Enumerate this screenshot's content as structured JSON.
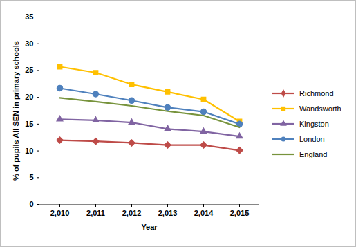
{
  "chart_data": {
    "type": "line",
    "xlabel": "Year",
    "ylabel": "% of pupils All SEN in primary schools",
    "x": [
      2010,
      2011,
      2012,
      2013,
      2014,
      2015
    ],
    "ylim": [
      0,
      35
    ],
    "yticks": [
      0,
      5,
      10,
      15,
      20,
      25,
      30,
      35
    ],
    "grid": false,
    "legend": "right",
    "series": [
      {
        "name": "Richmond",
        "color": "#be4b48",
        "marker": "diamond",
        "values": [
          12.0,
          11.8,
          11.5,
          11.1,
          11.1,
          10.1
        ]
      },
      {
        "name": "Wandsworth",
        "color": "#ffc000",
        "marker": "square",
        "values": [
          25.7,
          24.6,
          22.4,
          21.0,
          19.6,
          15.5
        ]
      },
      {
        "name": "Kingston",
        "color": "#8064a2",
        "marker": "triangle",
        "values": [
          15.9,
          15.7,
          15.3,
          14.1,
          13.6,
          12.7
        ]
      },
      {
        "name": "London",
        "color": "#4f81bd",
        "marker": "circle",
        "values": [
          21.7,
          20.6,
          19.4,
          18.1,
          17.3,
          15.0
        ]
      },
      {
        "name": "England",
        "color": "#77933c",
        "marker": "none",
        "values": [
          19.9,
          19.2,
          18.4,
          17.4,
          16.6,
          14.4
        ]
      }
    ]
  }
}
